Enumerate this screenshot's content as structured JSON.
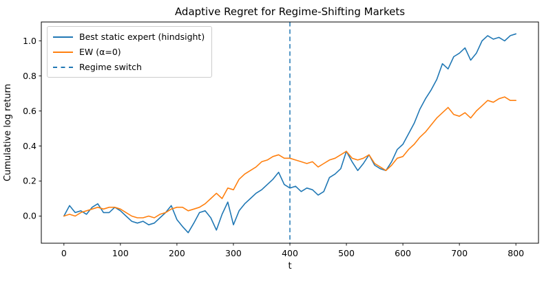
{
  "figure": {
    "background": "#ffffff",
    "frame_color": "#000000"
  },
  "chart_data": {
    "type": "line",
    "title": "Adaptive Regret for Regime-Shifting Markets",
    "xlabel": "t",
    "ylabel": "Cumulative log return",
    "xlim": [
      -40,
      840
    ],
    "ylim": [
      -0.155,
      1.108
    ],
    "grid": false,
    "xticks": [
      0,
      100,
      200,
      300,
      400,
      500,
      600,
      700,
      800
    ],
    "xtick_labels": [
      "0",
      "100",
      "200",
      "300",
      "400",
      "500",
      "600",
      "700",
      "800"
    ],
    "yticks": [
      0.0,
      0.2,
      0.4,
      0.6,
      0.8,
      1.0
    ],
    "ytick_labels": [
      "0.0",
      "0.2",
      "0.4",
      "0.6",
      "0.8",
      "1.0"
    ],
    "x": [
      0,
      10,
      20,
      30,
      40,
      50,
      60,
      70,
      80,
      90,
      100,
      110,
      120,
      130,
      140,
      150,
      160,
      170,
      180,
      190,
      200,
      210,
      220,
      230,
      240,
      250,
      260,
      270,
      280,
      290,
      300,
      310,
      320,
      330,
      340,
      350,
      360,
      370,
      380,
      390,
      400,
      410,
      420,
      430,
      440,
      450,
      460,
      470,
      480,
      490,
      500,
      510,
      520,
      530,
      540,
      550,
      560,
      570,
      580,
      590,
      600,
      610,
      620,
      630,
      640,
      650,
      660,
      670,
      680,
      690,
      700,
      710,
      720,
      730,
      740,
      750,
      760,
      770,
      780,
      790,
      800
    ],
    "series": [
      {
        "name": "Best static expert (hindsight)",
        "color": "#1f77b4",
        "line_style": "solid",
        "values": [
          0.0,
          0.06,
          0.02,
          0.03,
          0.01,
          0.05,
          0.07,
          0.02,
          0.02,
          0.05,
          0.03,
          0.0,
          -0.03,
          -0.04,
          -0.03,
          -0.05,
          -0.04,
          -0.01,
          0.02,
          0.06,
          -0.02,
          -0.06,
          -0.095,
          -0.04,
          0.02,
          0.03,
          -0.01,
          -0.08,
          0.01,
          0.08,
          -0.05,
          0.03,
          0.07,
          0.1,
          0.13,
          0.15,
          0.18,
          0.21,
          0.25,
          0.18,
          0.16,
          0.17,
          0.14,
          0.16,
          0.15,
          0.12,
          0.14,
          0.22,
          0.24,
          0.27,
          0.37,
          0.31,
          0.26,
          0.3,
          0.35,
          0.29,
          0.27,
          0.26,
          0.31,
          0.38,
          0.41,
          0.47,
          0.53,
          0.61,
          0.67,
          0.72,
          0.78,
          0.87,
          0.84,
          0.91,
          0.93,
          0.96,
          0.89,
          0.93,
          1.0,
          1.03,
          1.01,
          1.02,
          1.0,
          1.03,
          1.04
        ]
      },
      {
        "name": "EW (α=0)",
        "color": "#ff7f0e",
        "line_style": "solid",
        "values": [
          0.0,
          0.01,
          0.0,
          0.02,
          0.03,
          0.04,
          0.05,
          0.04,
          0.05,
          0.05,
          0.04,
          0.02,
          0.0,
          -0.01,
          -0.01,
          0.0,
          -0.01,
          0.01,
          0.02,
          0.04,
          0.05,
          0.05,
          0.03,
          0.04,
          0.05,
          0.07,
          0.1,
          0.13,
          0.1,
          0.16,
          0.15,
          0.21,
          0.24,
          0.26,
          0.28,
          0.31,
          0.32,
          0.34,
          0.35,
          0.33,
          0.33,
          0.32,
          0.31,
          0.3,
          0.31,
          0.28,
          0.3,
          0.32,
          0.33,
          0.35,
          0.37,
          0.33,
          0.32,
          0.33,
          0.35,
          0.3,
          0.28,
          0.26,
          0.29,
          0.33,
          0.34,
          0.38,
          0.41,
          0.45,
          0.48,
          0.52,
          0.56,
          0.59,
          0.62,
          0.58,
          0.57,
          0.59,
          0.56,
          0.6,
          0.63,
          0.66,
          0.65,
          0.67,
          0.68,
          0.66,
          0.66
        ]
      }
    ],
    "annotations": [
      {
        "type": "vline",
        "x": 400,
        "label": "Regime switch",
        "color": "#1f77b4",
        "line_style": "dashed"
      }
    ],
    "legend": {
      "position": "upper left",
      "entries": [
        {
          "label": "Best static expert (hindsight)",
          "color": "#1f77b4",
          "dash": false
        },
        {
          "label": "EW (α=0)",
          "color": "#ff7f0e",
          "dash": false
        },
        {
          "label": "Regime switch",
          "color": "#1f77b4",
          "dash": true
        }
      ]
    }
  }
}
